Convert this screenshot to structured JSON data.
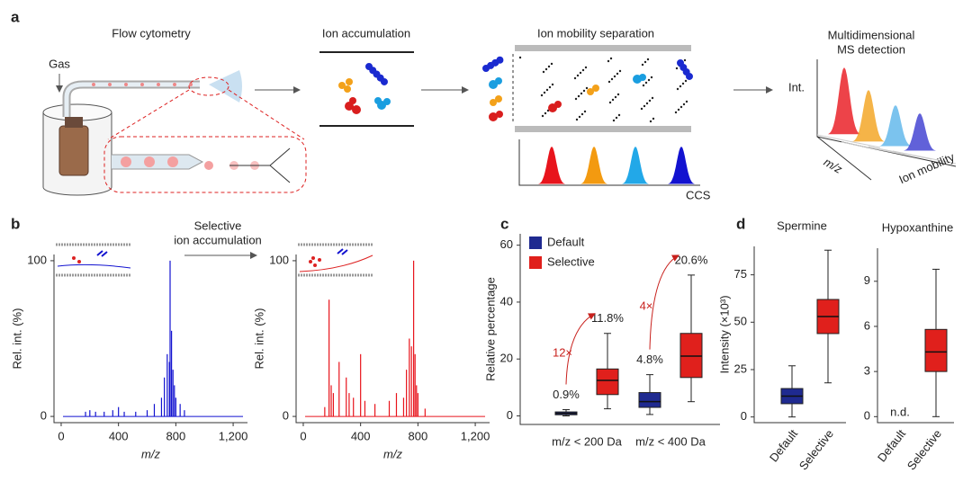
{
  "figure": {
    "a": {
      "label": "a",
      "flow_cytometry": "Flow cytometry",
      "gas": "Gas",
      "ion_accumulation": "Ion accumulation",
      "ims": "Ion mobility separation",
      "ccs": "CCS",
      "ms_detection": [
        "Multidimensional",
        "MS detection"
      ],
      "int": "Int.",
      "mz": "m/z",
      "ion_mobility": "Ion mobility"
    },
    "b": {
      "label": "b",
      "selective": [
        "Selective",
        "ion accumulation"
      ]
    },
    "c": {
      "label": "c"
    },
    "d": {
      "label": "d"
    }
  },
  "chart_data": [
    {
      "type": "spectrum",
      "color": "#1212d0",
      "xlabel": "m/z",
      "ylabel": "Rel. int. (%)",
      "x": [
        170,
        200,
        240,
        300,
        360,
        400,
        440,
        520,
        600,
        650,
        700,
        720,
        740,
        755,
        760,
        770,
        780,
        790,
        800,
        830,
        860
      ],
      "values": [
        3,
        4,
        3,
        3,
        4,
        6,
        3,
        3,
        4,
        8,
        12,
        25,
        40,
        35,
        100,
        55,
        30,
        20,
        12,
        8,
        4
      ],
      "xlim": [
        -50,
        1300
      ],
      "ylim": [
        -4,
        104
      ],
      "xticks": [
        0,
        400,
        800,
        {
          "value": 1200,
          "label": "1,200"
        }
      ],
      "yticks": [
        0,
        100
      ]
    },
    {
      "type": "spectrum",
      "color": "#e8141c",
      "xlabel": "m/z",
      "ylabel": "Rel. int. (%)",
      "x": [
        150,
        180,
        195,
        210,
        250,
        300,
        320,
        350,
        400,
        430,
        500,
        600,
        650,
        700,
        720,
        740,
        755,
        770,
        780,
        790,
        800,
        850
      ],
      "values": [
        6,
        75,
        20,
        15,
        35,
        25,
        15,
        12,
        40,
        10,
        8,
        10,
        15,
        12,
        30,
        50,
        45,
        100,
        40,
        20,
        15,
        5
      ],
      "xlim": [
        -50,
        1300
      ],
      "ylim": [
        -4,
        104
      ],
      "xticks": [
        0,
        400,
        800,
        {
          "value": 1200,
          "label": "1,200"
        }
      ],
      "yticks": [
        0,
        100
      ]
    },
    {
      "type": "box",
      "ylabel": "Relative percentage",
      "categories": [
        "m/z < 200 Da",
        "m/z < 400 Da"
      ],
      "ylim": [
        -3,
        64
      ],
      "yticks": [
        0,
        20,
        40,
        60
      ],
      "legend": "top-left",
      "series": [
        {
          "name": "Default",
          "color": "#1f2a90",
          "min": [
            0,
            0.5
          ],
          "q1": [
            0.4,
            3
          ],
          "median": [
            0.9,
            5
          ],
          "q3": [
            1.4,
            8.2
          ],
          "max": [
            2.2,
            14.5
          ],
          "mean": [
            0.9,
            4.8
          ],
          "mean_labels": [
            "0.9%",
            "4.8%"
          ]
        },
        {
          "name": "Selective",
          "color": "#e0201c",
          "min": [
            2.5,
            5
          ],
          "q1": [
            7.5,
            13.5
          ],
          "median": [
            12.5,
            21
          ],
          "q3": [
            16.5,
            29
          ],
          "max": [
            29,
            49.5
          ],
          "mean": [
            11.8,
            20.6
          ],
          "mean_labels": [
            "11.8%",
            "20.6%"
          ]
        }
      ],
      "fold_labels": [
        "12×",
        "4×"
      ]
    },
    {
      "type": "box",
      "title": "Spermine",
      "ylabel": "Intensity (×10³)",
      "categories": [
        "Default",
        "Selective"
      ],
      "colors": [
        "#1f2a90",
        "#e0201c"
      ],
      "min": [
        0,
        18
      ],
      "q1": [
        7,
        44
      ],
      "median": [
        11,
        53
      ],
      "q3": [
        15,
        62
      ],
      "max": [
        27,
        88
      ],
      "ylim": [
        -3,
        90
      ],
      "yticks": [
        0,
        25,
        50,
        75
      ]
    },
    {
      "type": "box",
      "title": "Hypoxanthine",
      "categories": [
        "Default",
        "Selective"
      ],
      "colors": [
        "#1f2a90",
        "#e0201c"
      ],
      "min": [
        null,
        0
      ],
      "q1": [
        null,
        3
      ],
      "median": [
        null,
        4.3
      ],
      "q3": [
        null,
        5.8
      ],
      "max": [
        null,
        9.8
      ],
      "missing_label": "n.d.",
      "ylim": [
        -0.4,
        11.2
      ],
      "yticks": [
        0,
        3,
        6,
        9
      ]
    }
  ]
}
